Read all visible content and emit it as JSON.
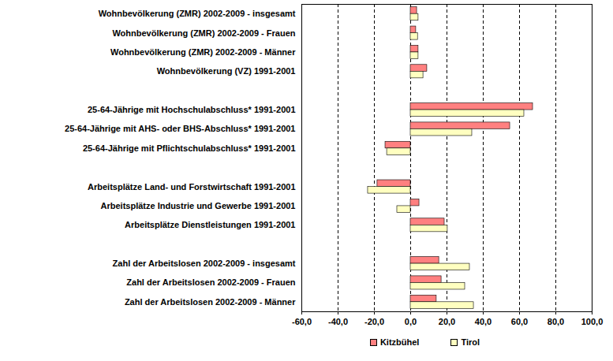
{
  "chart_data": {
    "type": "bar",
    "orientation": "horizontal",
    "categories": [
      "Wohnbevölkerung (ZMR) 2002-2009 - insgesamt",
      "Wohnbevölkerung (ZMR) 2002-2009 - Frauen",
      "Wohnbevölkerung (ZMR) 2002-2009 - Männer",
      "Wohnbevölkerung (VZ) 1991-2001",
      null,
      "25-64-Jährige mit Hochschulabschluss* 1991-2001",
      "25-64-Jährige mit AHS- oder BHS-Abschluss* 1991-2001",
      "25-64-Jährige mit Pflichtschulabschluss* 1991-2001",
      null,
      "Arbeitsplätze Land- und Forstwirtschaft 1991-2001",
      "Arbeitsplätze Industrie und Gewerbe 1991-2001",
      "Arbeitsplätze Dienstleistungen 1991-2001",
      null,
      "Zahl der Arbeitslosen 2002-2009 - insgesamt",
      "Zahl der Arbeitslosen 2002-2009 - Frauen",
      "Zahl der Arbeitslosen 2002-2009 - Männer"
    ],
    "series": [
      {
        "name": "Kitzbühel",
        "color": "#ff8080",
        "values": [
          3.5,
          3.0,
          4.3,
          9.1,
          null,
          67.4,
          54.8,
          -13.9,
          null,
          -18.3,
          4.8,
          18.7,
          null,
          15.7,
          17.0,
          14.3
        ]
      },
      {
        "name": "Tirol",
        "color": "#ffffc0",
        "values": [
          4.3,
          4.0,
          4.3,
          7.0,
          null,
          62.6,
          33.9,
          -13.0,
          null,
          -23.5,
          -7.4,
          20.4,
          null,
          32.6,
          30.0,
          34.8
        ]
      }
    ],
    "xlim": [
      -60,
      100
    ],
    "xticks": [
      {
        "value": -60,
        "label": "-60,0"
      },
      {
        "value": -40,
        "label": "-40,0"
      },
      {
        "value": -20,
        "label": "-20,0"
      },
      {
        "value": 0,
        "label": "0,0"
      },
      {
        "value": 20,
        "label": "20,0"
      },
      {
        "value": 40,
        "label": "40,0"
      },
      {
        "value": 60,
        "label": "60,0"
      },
      {
        "value": 80,
        "label": "80,0"
      },
      {
        "value": 100,
        "label": "100,0"
      }
    ],
    "grid": true,
    "legend": "bottom"
  }
}
